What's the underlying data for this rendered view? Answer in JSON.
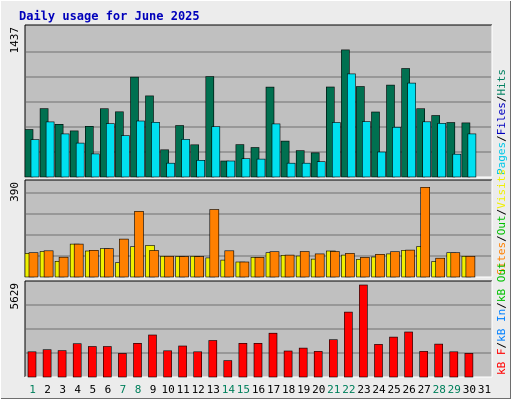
{
  "chart_data": [
    {
      "type": "bar",
      "title": "Daily usage for June 2025",
      "x_tick_labels": [
        "1",
        "2",
        "3",
        "4",
        "5",
        "6",
        "7",
        "8",
        "9",
        "10",
        "11",
        "12",
        "13",
        "14",
        "15",
        "16",
        "17",
        "18",
        "19",
        "20",
        "21",
        "22",
        "23",
        "24",
        "25",
        "26",
        "27",
        "28",
        "29",
        "30",
        "31"
      ],
      "weekend_days": [
        1,
        7,
        8,
        14,
        15,
        21,
        22,
        28,
        29
      ],
      "y_max_label": "1437",
      "ylim": [
        0,
        1437
      ],
      "ylabel_parts": [
        "Pages",
        "Files",
        "Hits"
      ],
      "ylabel_colors": [
        "#00c8e8",
        "#0000c0",
        "#008060"
      ],
      "series": [
        {
          "name": "Hits",
          "color": "#007050",
          "values": [
            461,
            664,
            512,
            448,
            492,
            663,
            633,
            970,
            787,
            264,
            500,
            313,
            976,
            155,
            315,
            286,
            873,
            349,
            256,
            234,
            874,
            1234,
            879,
            631,
            892,
            1053,
            663,
            597,
            529,
            525,
            0
          ]
        },
        {
          "name": "Files",
          "color": "#0000c0",
          "values": [
            0,
            0,
            0,
            0,
            0,
            0,
            0,
            0,
            0,
            0,
            0,
            0,
            0,
            0,
            0,
            0,
            0,
            0,
            0,
            0,
            0,
            0,
            0,
            0,
            0,
            0,
            0,
            0,
            0,
            0,
            0
          ]
        },
        {
          "name": "Pages",
          "color": "#00e0f0",
          "values": [
            363,
            535,
            418,
            329,
            224,
            518,
            402,
            544,
            531,
            134,
            365,
            162,
            489,
            155,
            178,
            174,
            516,
            134,
            134,
            149,
            529,
            1001,
            538,
            243,
            483,
            912,
            536,
            520,
            221,
            418,
            0
          ]
        }
      ]
    },
    {
      "type": "bar",
      "x_tick_labels": [
        "1",
        "2",
        "3",
        "4",
        "5",
        "6",
        "7",
        "8",
        "9",
        "10",
        "11",
        "12",
        "13",
        "14",
        "15",
        "16",
        "17",
        "18",
        "19",
        "20",
        "21",
        "22",
        "23",
        "24",
        "25",
        "26",
        "27",
        "28",
        "29",
        "30",
        "31"
      ],
      "y_max_label": "390",
      "ylim": [
        0,
        390
      ],
      "ylabel_parts": [
        "Sites",
        "Out",
        "Visits"
      ],
      "ylabel_colors": [
        "#ff8000",
        "#00c000",
        "#f0f000"
      ],
      "series": [
        {
          "name": "Visits",
          "color": "#f0f000",
          "values": [
            99,
            107,
            66,
            138,
            109,
            119,
            60,
            127,
            132,
            87,
            86,
            87,
            80,
            71,
            63,
            82,
            102,
            91,
            88,
            75,
            109,
            92,
            74,
            84,
            97,
            112,
            128,
            65,
            102,
            87,
            0
          ]
        },
        {
          "name": "Sites",
          "color": "#ff8000",
          "values": [
            102,
            110,
            83,
            138,
            112,
            119,
            159,
            275,
            111,
            87,
            86,
            86,
            283,
            110,
            63,
            82,
            106,
            92,
            107,
            97,
            107,
            99,
            82,
            95,
            106,
            113,
            376,
            79,
            102,
            87,
            0
          ]
        }
      ]
    },
    {
      "type": "bar",
      "x_tick_labels": [
        "1",
        "2",
        "3",
        "4",
        "5",
        "6",
        "7",
        "8",
        "9",
        "10",
        "11",
        "12",
        "13",
        "14",
        "15",
        "16",
        "17",
        "18",
        "19",
        "20",
        "21",
        "22",
        "23",
        "24",
        "25",
        "26",
        "27",
        "28",
        "29",
        "30",
        "31"
      ],
      "y_max_label": "5629",
      "ylim": [
        0,
        5629
      ],
      "ylabel_parts": [
        "kB F",
        "kB In",
        "kB Out"
      ],
      "ylabel_colors": [
        "#ff0000",
        "#0080ff",
        "#00c000"
      ],
      "series": [
        {
          "name": "kB F",
          "color": "#ff0000",
          "values": [
            1544,
            1672,
            1617,
            2039,
            1865,
            1865,
            1438,
            2062,
            2569,
            1602,
            1894,
            1540,
            2233,
            1003,
            2062,
            2062,
            2678,
            1588,
            1771,
            1567,
            2284,
            3973,
            5629,
            1996,
            2439,
            2752,
            1564,
            2012,
            1540,
            1444,
            0
          ]
        }
      ]
    }
  ]
}
